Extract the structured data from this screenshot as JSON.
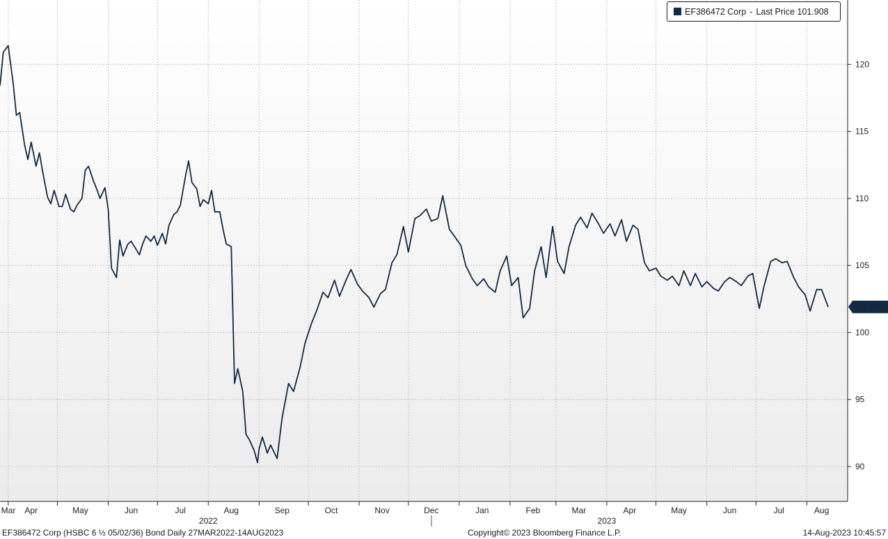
{
  "legend": {
    "ticker": "EF386472 Corp",
    "separator": "-",
    "label": "Last Price",
    "value": "101.908"
  },
  "last_price_tag": "101.908",
  "footer": {
    "left": "EF386472 Corp (HSBC 6 ½ 05/02/36) Bond  Daily 27MAR2022-14AUG2023",
    "center": "Copyright© 2023 Bloomberg Finance L.P.",
    "right": "14-Aug-2023 10:45:57"
  },
  "colors": {
    "line": "#13293f",
    "tag_bg": "#0f2a47",
    "grid": "#c8c8c8",
    "plot_bg_top": "#ffffff",
    "plot_bg_bottom": "#ececec"
  },
  "chart_data": {
    "type": "line",
    "title": "",
    "xlabel": "",
    "ylabel": "",
    "ylim": [
      87.4,
      124.8
    ],
    "y_ticks": [
      "90",
      "95",
      "100",
      "105",
      "110",
      "115",
      "120"
    ],
    "x_month_labels": [
      "Mar",
      "Apr",
      "May",
      "Jun",
      "Jul",
      "Aug",
      "Sep",
      "Oct",
      "Nov",
      "Dec",
      "Jan",
      "Feb",
      "Mar",
      "Apr",
      "May",
      "Jun",
      "Jul",
      "Aug"
    ],
    "x_year_labels": [
      "2022",
      "2023"
    ],
    "grid": true,
    "legend_position": "top-right",
    "series": [
      {
        "name": "EF386472 Corp - Last Price",
        "x": [
          "2022-03-27",
          "2022-03-29",
          "2022-04-01",
          "2022-04-04",
          "2022-04-06",
          "2022-04-08",
          "2022-04-11",
          "2022-04-13",
          "2022-04-15",
          "2022-04-18",
          "2022-04-20",
          "2022-04-22",
          "2022-04-25",
          "2022-04-27",
          "2022-04-29",
          "2022-05-02",
          "2022-05-04",
          "2022-05-06",
          "2022-05-09",
          "2022-05-11",
          "2022-05-13",
          "2022-05-16",
          "2022-05-18",
          "2022-05-20",
          "2022-05-23",
          "2022-05-25",
          "2022-05-27",
          "2022-05-30",
          "2022-06-01",
          "2022-06-03",
          "2022-06-06",
          "2022-06-08",
          "2022-06-10",
          "2022-06-13",
          "2022-06-15",
          "2022-06-17",
          "2022-06-20",
          "2022-06-22",
          "2022-06-24",
          "2022-06-27",
          "2022-06-29",
          "2022-07-01",
          "2022-07-04",
          "2022-07-06",
          "2022-07-08",
          "2022-07-11",
          "2022-07-13",
          "2022-07-15",
          "2022-07-18",
          "2022-07-20",
          "2022-07-22",
          "2022-07-25",
          "2022-07-27",
          "2022-07-29",
          "2022-08-01",
          "2022-08-03",
          "2022-08-05",
          "2022-08-08",
          "2022-08-10",
          "2022-08-12",
          "2022-08-15",
          "2022-08-17",
          "2022-08-19",
          "2022-08-22",
          "2022-08-24",
          "2022-08-26",
          "2022-08-29",
          "2022-08-31",
          "2022-09-01",
          "2022-09-03",
          "2022-09-06",
          "2022-09-08",
          "2022-09-12",
          "2022-09-15",
          "2022-09-19",
          "2022-09-22",
          "2022-09-26",
          "2022-09-29",
          "2022-10-03",
          "2022-10-06",
          "2022-10-10",
          "2022-10-13",
          "2022-10-17",
          "2022-10-20",
          "2022-10-24",
          "2022-10-27",
          "2022-10-31",
          "2022-11-03",
          "2022-11-07",
          "2022-11-10",
          "2022-11-14",
          "2022-11-17",
          "2022-11-21",
          "2022-11-24",
          "2022-11-28",
          "2022-12-01",
          "2022-12-05",
          "2022-12-08",
          "2022-12-12",
          "2022-12-15",
          "2022-12-19",
          "2022-12-22",
          "2022-12-26",
          "2022-12-29",
          "2023-01-02",
          "2023-01-05",
          "2023-01-09",
          "2023-01-12",
          "2023-01-16",
          "2023-01-19",
          "2023-01-23",
          "2023-01-26",
          "2023-01-30",
          "2023-02-02",
          "2023-02-06",
          "2023-02-09",
          "2023-02-13",
          "2023-02-16",
          "2023-02-20",
          "2023-02-23",
          "2023-02-27",
          "2023-03-02",
          "2023-03-06",
          "2023-03-09",
          "2023-03-13",
          "2023-03-16",
          "2023-03-20",
          "2023-03-23",
          "2023-03-27",
          "2023-03-30",
          "2023-04-03",
          "2023-04-06",
          "2023-04-10",
          "2023-04-13",
          "2023-04-17",
          "2023-04-20",
          "2023-04-24",
          "2023-04-27",
          "2023-05-01",
          "2023-05-04",
          "2023-05-08",
          "2023-05-11",
          "2023-05-15",
          "2023-05-18",
          "2023-05-22",
          "2023-05-25",
          "2023-05-29",
          "2023-06-01",
          "2023-06-05",
          "2023-06-08",
          "2023-06-12",
          "2023-06-15",
          "2023-06-19",
          "2023-06-22",
          "2023-06-26",
          "2023-06-29",
          "2023-07-03",
          "2023-07-06",
          "2023-07-10",
          "2023-07-13",
          "2023-07-17",
          "2023-07-20",
          "2023-07-24",
          "2023-07-27",
          "2023-07-31",
          "2023-08-03",
          "2023-08-07",
          "2023-08-10",
          "2023-08-14"
        ],
        "values": [
          118.4,
          120.9,
          121.4,
          118.6,
          116.2,
          116.4,
          114.0,
          112.9,
          114.2,
          112.4,
          113.4,
          112.0,
          110.1,
          109.6,
          110.6,
          109.4,
          109.4,
          110.3,
          109.2,
          109.0,
          109.5,
          110.0,
          112.1,
          112.4,
          111.3,
          110.7,
          110.0,
          110.8,
          109.2,
          104.8,
          104.1,
          106.9,
          105.7,
          106.6,
          106.8,
          106.4,
          105.8,
          106.6,
          107.2,
          106.8,
          107.2,
          106.5,
          107.4,
          106.6,
          108.0,
          108.8,
          109.0,
          109.5,
          111.6,
          112.8,
          111.2,
          110.7,
          109.4,
          109.9,
          109.6,
          110.6,
          109.0,
          109.0,
          107.7,
          106.6,
          106.4,
          96.2,
          97.3,
          95.6,
          92.4,
          92.0,
          91.2,
          90.3,
          91.3,
          92.2,
          91.0,
          91.6,
          90.6,
          93.6,
          96.2,
          95.6,
          97.4,
          99.2,
          100.7,
          101.6,
          103.0,
          102.6,
          103.9,
          102.7,
          103.9,
          104.7,
          103.6,
          103.1,
          102.6,
          101.9,
          102.9,
          103.2,
          105.2,
          105.8,
          107.9,
          106.0,
          108.5,
          108.7,
          109.2,
          108.3,
          108.5,
          110.2,
          107.7,
          107.2,
          106.5,
          105.0,
          104.0,
          103.5,
          104.0,
          103.4,
          103.0,
          104.6,
          105.7,
          103.5,
          104.1,
          101.1,
          101.8,
          104.6,
          106.4,
          104.1,
          107.9,
          105.3,
          104.4,
          106.4,
          108.0,
          108.6,
          107.8,
          108.9,
          108.1,
          107.4,
          108.1,
          107.2,
          108.4,
          106.8,
          108.0,
          107.7,
          105.2,
          104.6,
          104.8,
          104.2,
          103.9,
          104.2,
          103.5,
          104.6,
          103.5,
          104.4,
          103.4,
          103.8,
          103.3,
          103.1,
          103.8,
          104.1,
          103.8,
          103.5,
          104.2,
          104.4,
          101.8,
          103.5,
          105.3,
          105.5,
          105.2,
          105.3,
          104.1,
          103.4,
          102.8,
          101.6,
          103.2,
          103.2,
          101.908
        ]
      }
    ]
  }
}
